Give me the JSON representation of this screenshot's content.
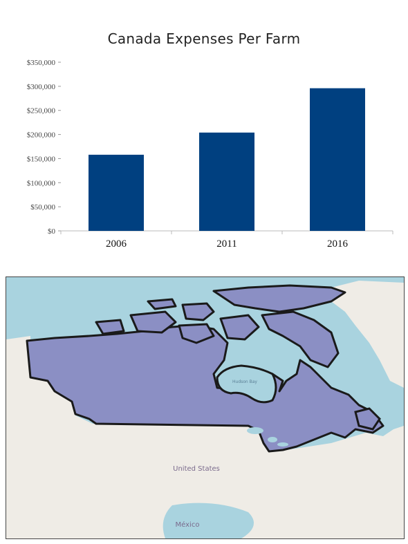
{
  "chart_data": {
    "type": "bar",
    "title": "Canada Expenses Per Farm",
    "categories": [
      "2006",
      "2011",
      "2016"
    ],
    "values": [
      158000,
      204000,
      296000
    ],
    "ylim": [
      0,
      350000
    ],
    "yticks": [
      "$0",
      "$50,000",
      "$100,000",
      "$150,000",
      "$200,000",
      "$250,000",
      "$300,000",
      "$350,000"
    ],
    "ytick_values": [
      0,
      50000,
      100000,
      150000,
      200000,
      250000,
      300000,
      350000
    ],
    "grid": false,
    "bar_color": "#004080"
  },
  "map": {
    "labels": {
      "united_states": "United States",
      "mexico": "México",
      "hudson_bay": "Hudson Bay"
    },
    "colors": {
      "water": "#a9d3df",
      "land": "#efece6",
      "canada_fill": "#8b8fc4",
      "border": "#1a1a1a"
    }
  }
}
